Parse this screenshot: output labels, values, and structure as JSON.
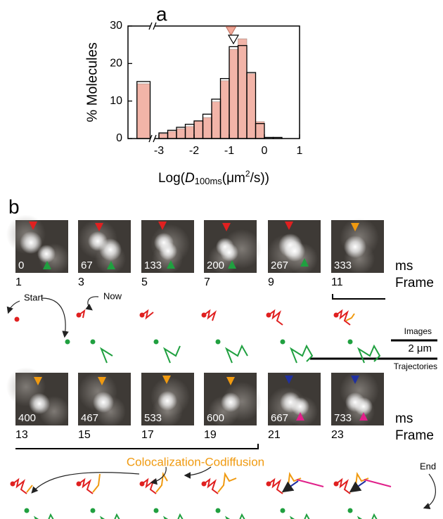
{
  "chart_data": {
    "type": "histogram",
    "panel_label": "a",
    "ylabel": "% Molecules",
    "xlabel_parts": [
      "Log(",
      "D",
      "100ms",
      "(μm",
      "2",
      "/s))"
    ],
    "bins": [
      -3.625,
      -3.25,
      -3,
      -2.75,
      -2.5,
      -2.25,
      -2,
      -1.75,
      -1.5,
      -1.25,
      -1,
      -0.75,
      -0.5,
      -0.25,
      0,
      0.25,
      0.5
    ],
    "series": [
      {
        "color": "#f2b4a8",
        "style": "filled",
        "values": [
          14.6,
          0,
          1.3,
          1.9,
          2.6,
          3.2,
          4.7,
          5.6,
          9.8,
          15.4,
          23.8,
          26.6,
          17.3,
          4.5,
          0,
          0
        ]
      },
      {
        "color": "#000000",
        "style": "outline",
        "values": [
          15.2,
          0,
          1.5,
          2.2,
          3,
          3.8,
          4.7,
          6.5,
          10.5,
          16,
          24.5,
          24.8,
          17.6,
          4,
          0.3,
          0.3
        ]
      }
    ],
    "markers": [
      {
        "x": -0.95,
        "color": "#f2a898"
      },
      {
        "x": -0.88,
        "color": "#ffffff"
      }
    ],
    "xlim": [
      -3.88,
      1
    ],
    "ylim": [
      0,
      30
    ],
    "xticks": [
      -3,
      -2,
      -1,
      0,
      1
    ],
    "yticks": [
      0,
      10,
      20,
      30
    ]
  },
  "panel_b": {
    "label": "b",
    "time_unit": "ms",
    "frame_label": "Frame",
    "rows": [
      [
        {
          "time": 0,
          "frame": 1
        },
        {
          "time": 67,
          "frame": 3
        },
        {
          "time": 133,
          "frame": 5
        },
        {
          "time": 200,
          "frame": 7
        },
        {
          "time": 267,
          "frame": 9
        },
        {
          "time": 333,
          "frame": 11
        }
      ],
      [
        {
          "time": 400,
          "frame": 13
        },
        {
          "time": 467,
          "frame": 15
        },
        {
          "time": 533,
          "frame": 17
        },
        {
          "time": 600,
          "frame": 19
        },
        {
          "time": 667,
          "frame": 21
        },
        {
          "time": 733,
          "frame": 23
        }
      ]
    ],
    "annotations": {
      "start": "Start",
      "now": "Now",
      "images": "Images",
      "scale": "2 μm",
      "trajectories": "Trajectories",
      "coloc": "Colocalization-Codiffusion",
      "end": "End"
    }
  }
}
